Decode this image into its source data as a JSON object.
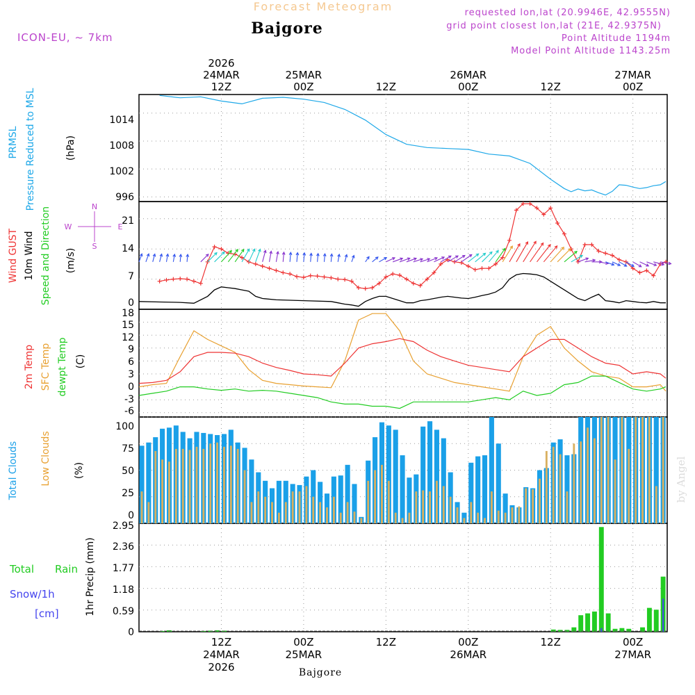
{
  "header": {
    "title": "Forecast Meteogram",
    "location": "Bajgore",
    "model": "ICON-EU, ~ 7km",
    "requested": "requested lon,lat (20.9946E, 42.9555N)",
    "grid_point": "grid point closest lon,lat (21E, 42.9375N)",
    "point_altitude": "Point Altitude 1194m",
    "model_altitude": "Model Point Altitude 1143.25m",
    "footer_location": "Bajgore",
    "credit": "by Angel"
  },
  "time_axis": {
    "top_labels": [
      {
        "t": 12,
        "lines": [
          "2026",
          "24MAR",
          "12Z"
        ]
      },
      {
        "t": 24,
        "lines": [
          "25MAR",
          "00Z"
        ]
      },
      {
        "t": 36,
        "lines": [
          "12Z"
        ]
      },
      {
        "t": 48,
        "lines": [
          "26MAR",
          "00Z"
        ]
      },
      {
        "t": 60,
        "lines": [
          "12Z"
        ]
      },
      {
        "t": 72,
        "lines": [
          "27MAR",
          "00Z"
        ]
      }
    ],
    "bottom_labels": [
      {
        "t": 12,
        "lines": [
          "12Z",
          "24MAR",
          "2026"
        ]
      },
      {
        "t": 24,
        "lines": [
          "00Z",
          "25MAR"
        ]
      },
      {
        "t": 36,
        "lines": [
          "12Z"
        ]
      },
      {
        "t": 48,
        "lines": [
          "00Z",
          "26MAR"
        ]
      },
      {
        "t": 60,
        "lines": [
          "12Z"
        ]
      },
      {
        "t": 72,
        "lines": [
          "00Z",
          "27MAR"
        ]
      }
    ]
  },
  "compass": {
    "n": "N",
    "s": "S",
    "e": "E",
    "w": "W"
  },
  "panels": {
    "pressure": {
      "label1": "PRMSL",
      "label2": "Pressure Reduced to MSL",
      "unit": "(hPa)",
      "ticks": [
        "996",
        "1002",
        "1008",
        "1014"
      ]
    },
    "wind": {
      "label1": "Wind GUST",
      "label2": "10m Wind",
      "label3": "Speed and Direction",
      "unit": "(m/s)",
      "ticks": [
        "0",
        "7",
        "14",
        "21"
      ]
    },
    "temp": {
      "label1": "2m Temp",
      "label2": "SFC Temp",
      "label3": "dewpt Temp",
      "unit": "(C)",
      "ticks": [
        "-6",
        "-3",
        "0",
        "3",
        "6",
        "9",
        "12",
        "15",
        "18"
      ]
    },
    "clouds": {
      "label1": "Total Clouds",
      "label2": "Low Clouds",
      "unit": "(%)",
      "ticks": [
        "0",
        "25",
        "50",
        "75",
        "100"
      ]
    },
    "precip": {
      "label1": "Total",
      "label2": "Rain",
      "label3": "Snow/1h",
      "label4": "[cm]",
      "unit": "1hr Precip (mm)",
      "ticks": [
        "0",
        "0.59",
        "1.18",
        "1.77",
        "2.36",
        "2.95"
      ]
    }
  },
  "colors": {
    "pressure": "#1ea8e8",
    "gust": "#ee3333",
    "wind": "#000000",
    "temp2m": "#ee3333",
    "sfc": "#e8a030",
    "dew": "#22cc22",
    "total_cloud": "#1aa0e8",
    "low_cloud": "#d8b060",
    "rain": "#22cc22",
    "snow": "#4444ee",
    "title": "#f5c890",
    "info": "#bb44cc"
  },
  "chart_data": {
    "type": "meteogram",
    "time_unit": "hours from 24MAR 00Z",
    "pressure": {
      "name": "PRMSL",
      "ylabel": "hPa",
      "ylim": [
        995,
        1018
      ],
      "x": [
        3,
        6,
        9,
        12,
        15,
        18,
        21,
        24,
        27,
        30,
        33,
        36,
        39,
        42,
        45,
        48,
        51,
        54,
        57,
        60,
        62,
        63,
        64,
        65,
        66,
        67,
        68,
        69,
        70,
        71,
        72,
        73,
        74,
        75,
        76,
        76.8
      ],
      "values": [
        1017.8,
        1017.3,
        1017.5,
        1016.6,
        1016.0,
        1017.2,
        1017.4,
        1017.0,
        1016.3,
        1014.8,
        1012.5,
        1009.4,
        1007.3,
        1006.6,
        1006.4,
        1006.2,
        1005.2,
        1004.8,
        1003.2,
        999.8,
        997.8,
        997.1,
        997.7,
        997.3,
        997.5,
        996.9,
        996.4,
        997.2,
        998.6,
        998.5,
        998.1,
        997.8,
        998.0,
        998.4,
        998.6,
        999.3
      ]
    },
    "wind": {
      "ylim": [
        0,
        25
      ],
      "gust": {
        "name": "Wind GUST",
        "x": [
          3,
          4,
          5,
          6,
          7,
          8,
          9,
          10,
          11,
          12,
          13,
          14,
          15,
          16,
          17,
          18,
          19,
          20,
          21,
          22,
          23,
          24,
          25,
          26,
          27,
          28,
          29,
          30,
          31,
          32,
          33,
          34,
          35,
          36,
          37,
          38,
          39,
          40,
          41,
          42,
          43,
          44,
          45,
          46,
          47,
          48,
          49,
          50,
          51,
          52,
          53,
          54,
          55,
          56,
          57,
          58,
          59,
          60,
          61,
          62,
          63,
          64,
          65,
          66,
          67,
          68,
          69,
          70,
          71,
          72,
          73,
          74,
          75,
          76,
          76.8
        ],
        "values": [
          6.5,
          6.8,
          7.0,
          7.1,
          7.0,
          6.5,
          6.0,
          11.0,
          14.5,
          14.0,
          13.0,
          12.8,
          12.0,
          11.0,
          10.5,
          10.0,
          9.5,
          9.0,
          8.5,
          8.2,
          7.6,
          7.4,
          7.8,
          7.7,
          7.5,
          7.3,
          7.0,
          6.9,
          6.5,
          5.0,
          4.8,
          5.0,
          6.0,
          7.5,
          8.2,
          7.9,
          7.0,
          6.0,
          5.5,
          7.0,
          8.5,
          10.5,
          11.5,
          11.0,
          10.8,
          10.0,
          9.2,
          9.5,
          9.5,
          10.5,
          12.0,
          16.0,
          23.0,
          24.5,
          24.5,
          23.5,
          22.0,
          23.5,
          20.0,
          17.5,
          14.0,
          11.0,
          15.0,
          15.0,
          13.5,
          13.0,
          12.5,
          11.5,
          11.0,
          9.5,
          8.5,
          9.0,
          7.8,
          10.5,
          11.0
        ]
      },
      "speed": {
        "name": "10m Wind",
        "x": [
          0,
          3,
          6,
          8,
          10,
          11,
          12,
          13,
          14,
          15,
          16,
          17,
          18,
          20,
          24,
          28,
          29,
          30,
          31,
          32,
          33,
          34,
          35,
          36,
          37,
          38,
          39,
          40,
          41,
          42,
          43,
          44,
          45,
          46,
          47,
          48,
          49,
          50,
          51,
          52,
          53,
          54,
          55,
          56,
          57,
          58,
          59,
          60,
          61,
          62,
          63,
          64,
          65,
          66,
          67,
          68,
          69,
          70,
          71,
          72,
          73,
          74,
          75,
          76,
          76.8
        ],
        "values": [
          1.8,
          1.7,
          1.6,
          1.4,
          3.0,
          4.5,
          5.2,
          5.0,
          4.8,
          4.5,
          4.2,
          3.0,
          2.5,
          2.2,
          2.0,
          1.8,
          1.5,
          1.2,
          1.0,
          0.7,
          1.8,
          2.5,
          3.0,
          3.0,
          2.5,
          2.0,
          1.5,
          1.5,
          2.0,
          2.2,
          2.5,
          2.8,
          3.0,
          2.8,
          2.6,
          2.5,
          2.8,
          3.2,
          3.5,
          4.0,
          5.0,
          7.0,
          8.0,
          8.3,
          8.2,
          8.0,
          7.5,
          6.5,
          5.5,
          4.5,
          3.5,
          2.5,
          2.0,
          2.8,
          3.5,
          2.0,
          1.8,
          1.5,
          2.0,
          1.8,
          1.6,
          1.5,
          1.8,
          1.5,
          1.5
        ]
      },
      "arrows": {
        "x": [
          0,
          1,
          2,
          3,
          4,
          5,
          6,
          7,
          9,
          10,
          11,
          12,
          13,
          14,
          15,
          16,
          17,
          18,
          19,
          20,
          21,
          22,
          23,
          24,
          25,
          26,
          27,
          28,
          29,
          30,
          31,
          33,
          34,
          35,
          36,
          37,
          38,
          39,
          40,
          41,
          42,
          43,
          44,
          45,
          46,
          47,
          48,
          49,
          50,
          51,
          52,
          53,
          54,
          55,
          56,
          57,
          58,
          59,
          60,
          61,
          62,
          63,
          64,
          65,
          66,
          67,
          68,
          69,
          70,
          71,
          72,
          73,
          74,
          75,
          76
        ],
        "speed": [
          2.0,
          2.0,
          1.8,
          1.8,
          1.7,
          1.6,
          1.5,
          1.5,
          3.0,
          4.0,
          4.5,
          5.0,
          5.2,
          5.0,
          4.8,
          4.5,
          4.2,
          3.5,
          3.0,
          2.8,
          2.5,
          2.4,
          2.3,
          2.2,
          2.0,
          1.9,
          1.8,
          1.7,
          1.6,
          1.5,
          1.2,
          1.0,
          1.5,
          2.0,
          2.5,
          2.8,
          3.0,
          2.8,
          2.5,
          2.6,
          3.0,
          3.2,
          3.4,
          3.5,
          3.6,
          3.8,
          4.0,
          4.2,
          4.5,
          4.8,
          5.5,
          6.5,
          7.5,
          8.5,
          9.0,
          8.5,
          8.0,
          7.5,
          7.0,
          6.5,
          5.5,
          4.0,
          3.0,
          2.8,
          2.6,
          2.5,
          2.2,
          2.0,
          2.0,
          2.2,
          2.5,
          2.5,
          2.8,
          3.0,
          3.0
        ],
        "direction_deg": [
          200,
          200,
          195,
          195,
          190,
          190,
          185,
          185,
          225,
          225,
          225,
          222,
          218,
          215,
          210,
          205,
          200,
          195,
          190,
          190,
          185,
          185,
          185,
          185,
          185,
          185,
          185,
          185,
          190,
          195,
          200,
          215,
          230,
          240,
          245,
          250,
          250,
          250,
          252,
          252,
          248,
          245,
          240,
          240,
          238,
          235,
          232,
          230,
          225,
          220,
          215,
          212,
          210,
          210,
          212,
          215,
          218,
          220,
          222,
          225,
          230,
          240,
          250,
          260,
          270,
          280,
          290,
          295,
          300,
          300,
          300,
          295,
          290,
          285,
          280
        ]
      }
    },
    "temperature": {
      "ylabel": "C",
      "ylim": [
        -7,
        18
      ],
      "x": [
        0,
        2,
        4,
        6,
        8,
        10,
        12,
        14,
        16,
        18,
        20,
        22,
        24,
        26,
        28,
        30,
        32,
        34,
        36,
        38,
        40,
        42,
        44,
        46,
        48,
        50,
        52,
        54,
        56,
        58,
        60,
        62,
        64,
        66,
        68,
        70,
        72,
        74,
        76,
        76.8
      ],
      "temp2m": [
        0.8,
        1.0,
        1.5,
        3.5,
        7.0,
        8.0,
        8.0,
        7.8,
        7.0,
        5.5,
        4.5,
        3.8,
        3.0,
        2.8,
        2.5,
        5.5,
        9.0,
        10.0,
        10.5,
        11.2,
        10.5,
        8.5,
        7.0,
        6.0,
        5.0,
        4.5,
        4.0,
        3.5,
        7.0,
        9.0,
        11.0,
        11.0,
        9.0,
        7.0,
        5.5,
        5.0,
        3.0,
        3.5,
        3.0,
        2.0
      ],
      "sfc": [
        0.0,
        0.5,
        0.8,
        7.0,
        13.0,
        11.0,
        9.5,
        8.0,
        4.0,
        1.5,
        0.8,
        0.5,
        0.2,
        0.0,
        -0.2,
        6.0,
        15.5,
        17.0,
        17.0,
        13.0,
        6.0,
        3.0,
        2.0,
        1.0,
        0.5,
        0.0,
        -0.5,
        -1.0,
        7.0,
        12.0,
        14.0,
        9.0,
        6.0,
        3.5,
        2.5,
        2.0,
        0.0,
        0.0,
        0.5,
        -1.0
      ],
      "dew": [
        -2.0,
        -1.5,
        -1.0,
        0.0,
        0.0,
        -0.5,
        -0.8,
        -0.5,
        -1.0,
        -0.8,
        -1.0,
        -1.5,
        -2.0,
        -2.5,
        -3.5,
        -4.0,
        -4.0,
        -4.5,
        -4.5,
        -5.0,
        -3.5,
        -3.5,
        -3.5,
        -3.5,
        -3.5,
        -3.0,
        -2.5,
        -3.0,
        -1.0,
        -2.0,
        -1.5,
        0.5,
        1.0,
        2.5,
        2.5,
        1.0,
        -0.5,
        -1.0,
        -0.5,
        0.0
      ]
    },
    "clouds": {
      "ylabel": "%",
      "ylim": [
        0,
        100
      ],
      "x": [
        0,
        1,
        2,
        3,
        4,
        5,
        6,
        7,
        8,
        9,
        10,
        11,
        12,
        13,
        14,
        15,
        16,
        17,
        18,
        19,
        20,
        21,
        22,
        23,
        24,
        25,
        26,
        27,
        28,
        29,
        30,
        31,
        32,
        33,
        34,
        35,
        36,
        37,
        38,
        39,
        40,
        41,
        42,
        43,
        44,
        45,
        46,
        47,
        48,
        49,
        50,
        51,
        52,
        53,
        54,
        55,
        56,
        57,
        58,
        59,
        60,
        61,
        62,
        63,
        64,
        65,
        66,
        67,
        68,
        69,
        70,
        71,
        72,
        73,
        74,
        75,
        76
      ],
      "total": [
        73,
        76,
        81,
        89,
        90,
        92,
        86,
        80,
        86,
        85,
        84,
        83,
        84,
        88,
        76,
        71,
        60,
        48,
        40,
        33,
        40,
        40,
        37,
        36,
        44,
        50,
        39,
        28,
        44,
        45,
        55,
        37,
        6,
        59,
        81,
        95,
        92,
        88,
        64,
        43,
        46,
        91,
        96,
        88,
        80,
        48,
        20,
        10,
        57,
        63,
        64,
        100,
        75,
        28,
        17,
        15,
        34,
        33,
        50,
        52,
        76,
        79,
        64,
        65,
        100,
        100,
        100,
        100,
        100,
        100,
        100,
        100,
        100,
        100,
        100,
        100,
        100
      ],
      "low": [
        30,
        20,
        68,
        60,
        58,
        70,
        70,
        69,
        72,
        70,
        75,
        76,
        72,
        73,
        70,
        50,
        20,
        30,
        25,
        20,
        10,
        20,
        30,
        30,
        35,
        25,
        20,
        15,
        25,
        10,
        20,
        11,
        5,
        40,
        50,
        55,
        40,
        10,
        5,
        10,
        30,
        31,
        30,
        40,
        35,
        25,
        15,
        5,
        20,
        10,
        5,
        30,
        12,
        10,
        15,
        16,
        33,
        32,
        42,
        68,
        72,
        65,
        30,
        75,
        77,
        90,
        80,
        100,
        100,
        60,
        100,
        70,
        100,
        100,
        100,
        35,
        100
      ]
    },
    "precip": {
      "ylabel": "1hr Precip (mm)",
      "ylim": [
        0,
        2.95
      ],
      "x": [
        3,
        4,
        9,
        10,
        11,
        12,
        60,
        61,
        62,
        63,
        64,
        65,
        66,
        67,
        68,
        69,
        70,
        71,
        72,
        73,
        74,
        75,
        76
      ],
      "rain": [
        0.02,
        0.04,
        0.02,
        0.03,
        0.04,
        0.03,
        0.06,
        0.05,
        0.05,
        0.12,
        0.45,
        0.5,
        0.55,
        2.85,
        0.5,
        0.08,
        0.1,
        0.08,
        0.0,
        0.12,
        0.65,
        0.6,
        1.5
      ],
      "snow": [
        0,
        0,
        0,
        0,
        0,
        0,
        0,
        0,
        0,
        0,
        0,
        0,
        0,
        0.1,
        0,
        0,
        0,
        0,
        0,
        0,
        0,
        0,
        0.9
      ]
    }
  }
}
